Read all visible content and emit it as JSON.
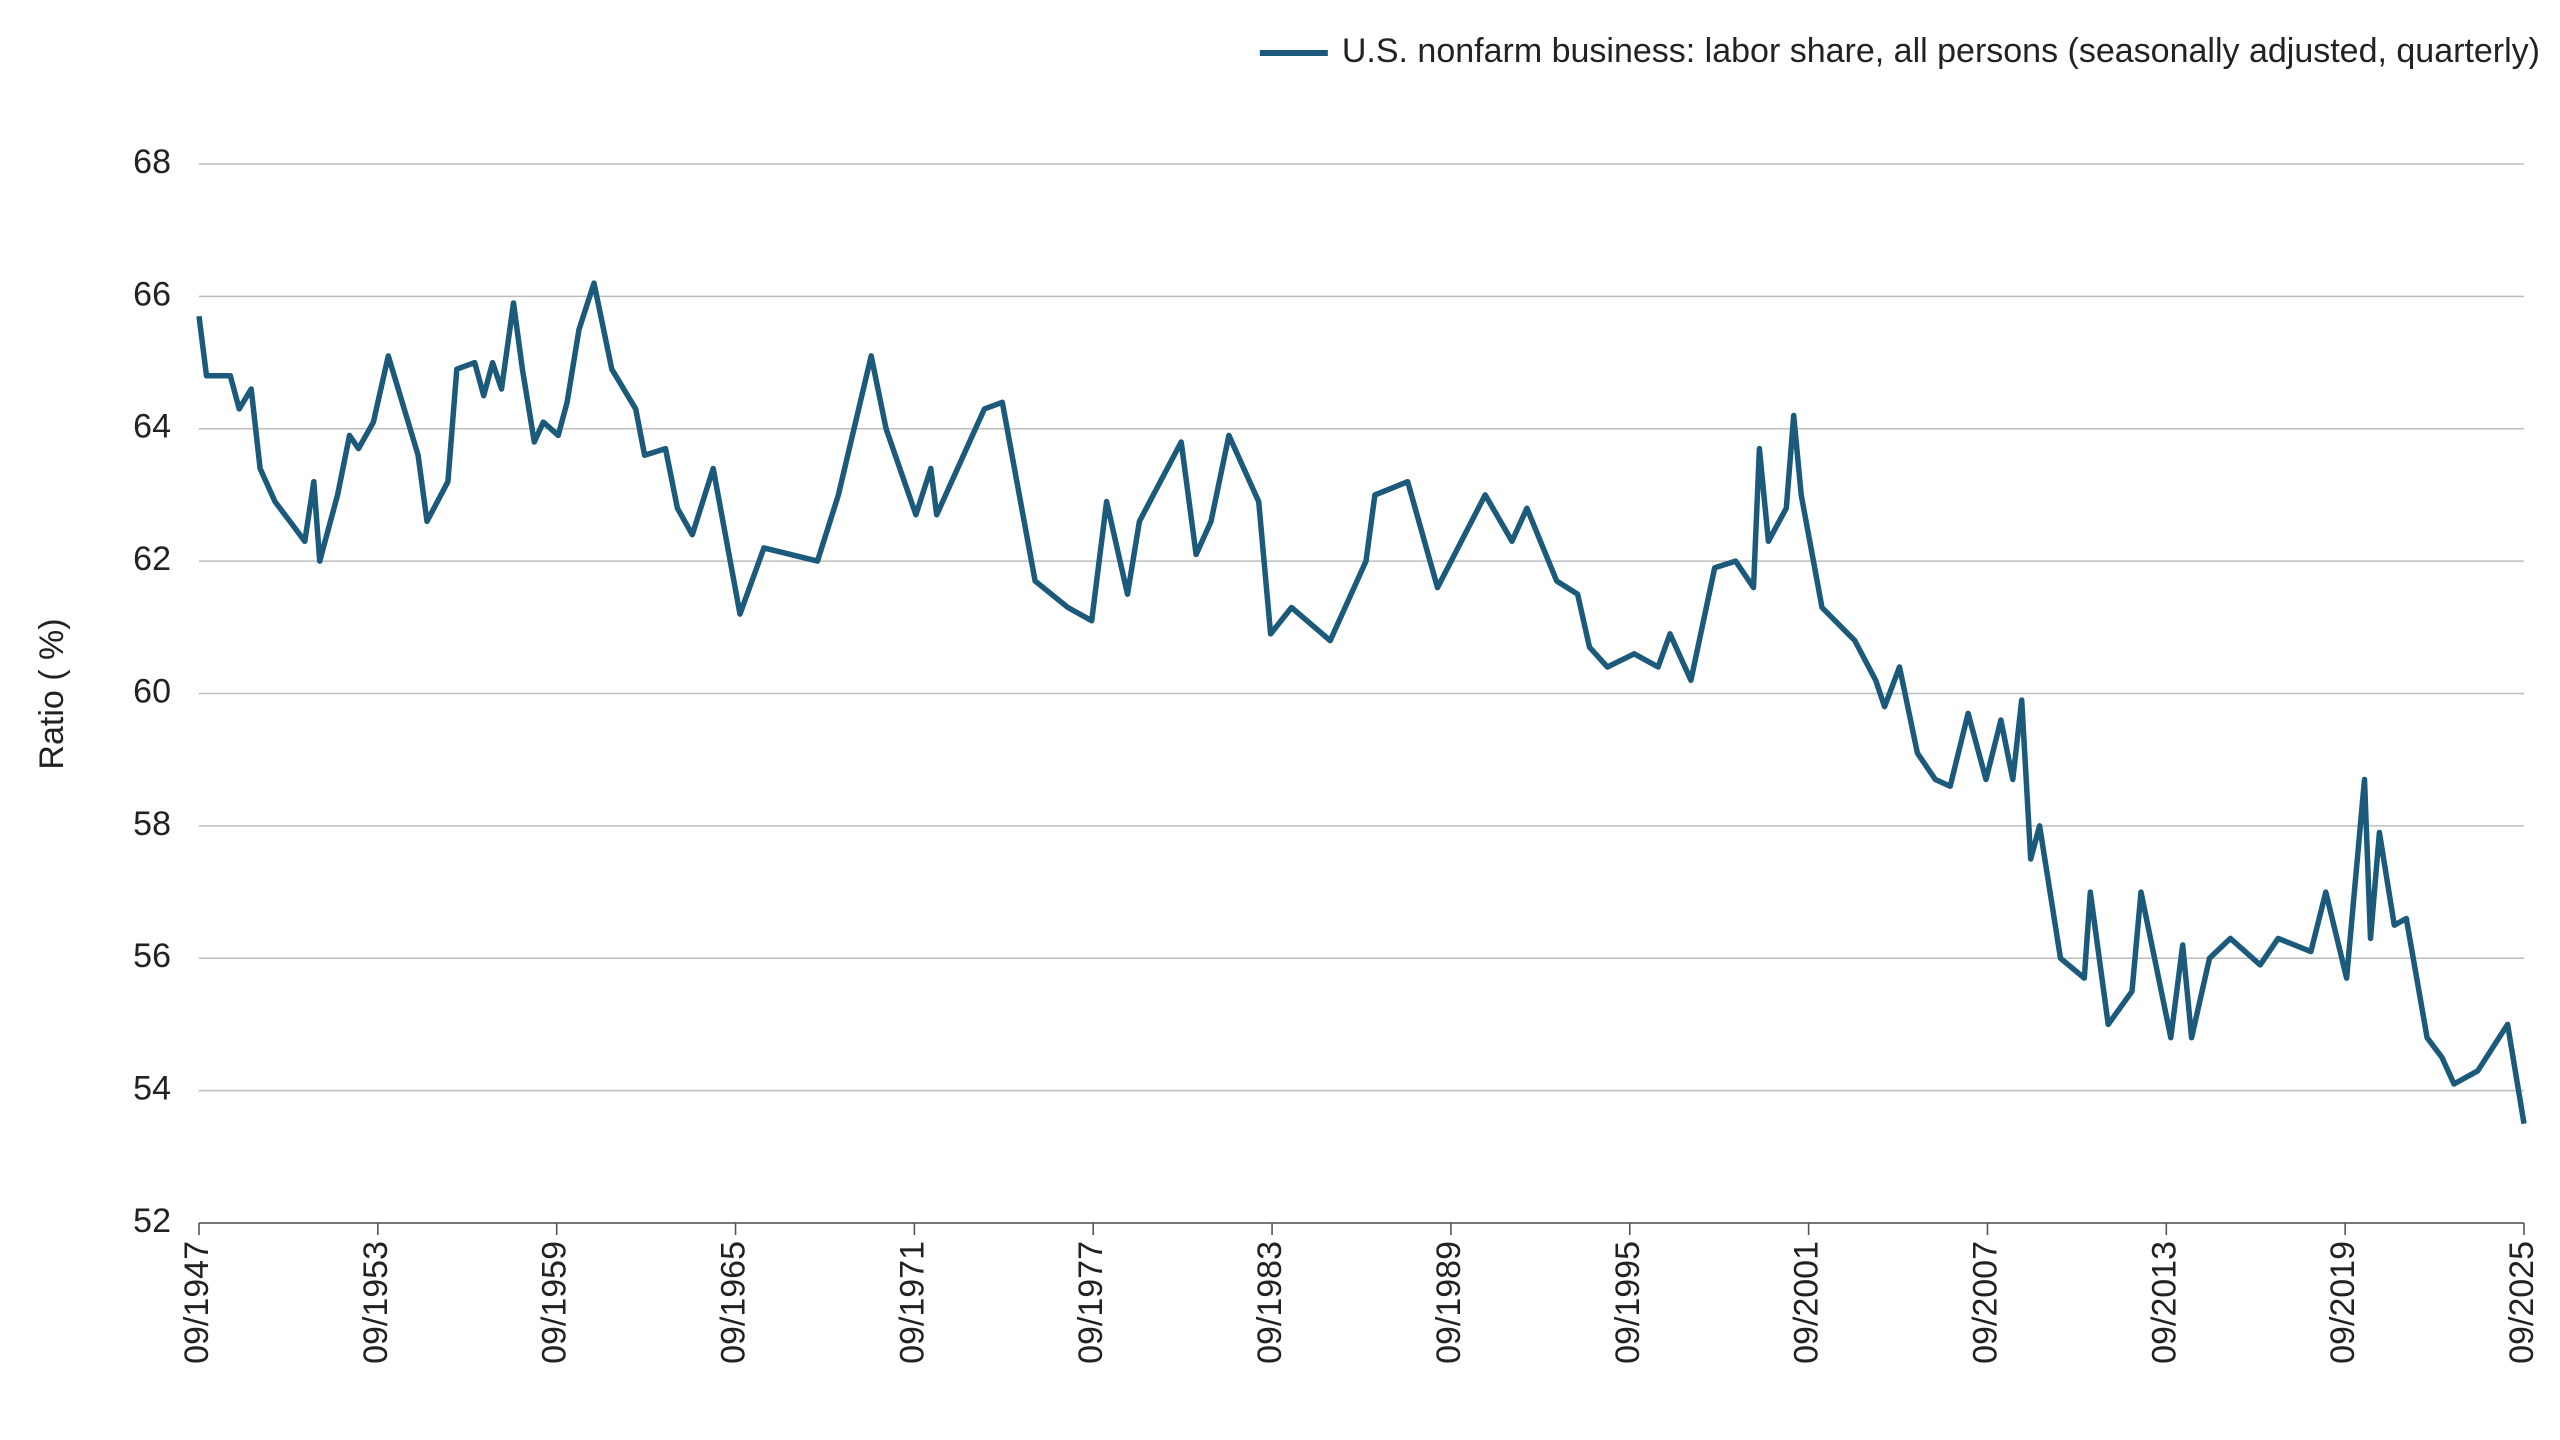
{
  "chart_data": {
    "type": "line",
    "y_label": "Ratio ( %)",
    "xlim": [
      1947.75,
      2025.75
    ],
    "xticks": [
      {
        "value": 1947.75,
        "label": "09/1947"
      },
      {
        "value": 1953.75,
        "label": "09/1953"
      },
      {
        "value": 1959.75,
        "label": "09/1959"
      },
      {
        "value": 1965.75,
        "label": "09/1965"
      },
      {
        "value": 1971.75,
        "label": "09/1971"
      },
      {
        "value": 1977.75,
        "label": "09/1977"
      },
      {
        "value": 1983.75,
        "label": "09/1983"
      },
      {
        "value": 1989.75,
        "label": "09/1989"
      },
      {
        "value": 1995.75,
        "label": "09/1995"
      },
      {
        "value": 2001.75,
        "label": "09/2001"
      },
      {
        "value": 2007.75,
        "label": "09/2007"
      },
      {
        "value": 2013.75,
        "label": "09/2013"
      },
      {
        "value": 2019.75,
        "label": "09/2019"
      },
      {
        "value": 2025.75,
        "label": "09/2025"
      }
    ],
    "ylim": [
      52,
      68
    ],
    "yticks": [
      52,
      54,
      56,
      58,
      60,
      62,
      64,
      66,
      68
    ],
    "grid": true,
    "legend": "top-right",
    "x": [
      1947.75,
      1948.0,
      1948.8,
      1949.1,
      1949.5,
      1949.8,
      1950.3,
      1950.8,
      1951.3,
      1951.6,
      1951.8,
      1952.4,
      1952.8,
      1953.1,
      1953.6,
      1954.1,
      1955.1,
      1955.4,
      1956.1,
      1956.4,
      1957.0,
      1957.3,
      1957.6,
      1957.9,
      1958.3,
      1958.6,
      1959.0,
      1959.3,
      1959.8,
      1960.1,
      1960.5,
      1961.0,
      1961.6,
      1962.4,
      1962.7,
      1963.4,
      1963.8,
      1964.3,
      1965.0,
      1965.9,
      1966.7,
      1968.5,
      1969.2,
      1970.3,
      1970.8,
      1971.8,
      1972.3,
      1972.5,
      1974.1,
      1974.7,
      1975.8,
      1976.9,
      1977.7,
      1978.2,
      1978.9,
      1979.3,
      1980.7,
      1981.2,
      1981.7,
      1982.3,
      1983.3,
      1983.7,
      1984.4,
      1985.7,
      1986.9,
      1987.2,
      1988.3,
      1989.3,
      1990.9,
      1991.8,
      1992.3,
      1993.3,
      1994.0,
      1994.4,
      1995.0,
      1995.9,
      1996.7,
      1997.1,
      1997.8,
      1998.6,
      1999.3,
      1999.9,
      2000.1,
      2000.4,
      2001.0,
      2001.25,
      2001.5,
      2002.2,
      2003.3,
      2004.0,
      2004.3,
      2004.8,
      2005.4,
      2006.0,
      2006.5,
      2007.1,
      2007.7,
      2008.2,
      2008.6,
      2008.9,
      2009.2,
      2009.5,
      2010.2,
      2011.0,
      2011.2,
      2011.8,
      2012.6,
      2012.9,
      2013.9,
      2014.3,
      2014.6,
      2015.2,
      2015.9,
      2016.9,
      2017.5,
      2018.6,
      2019.1,
      2019.8,
      2020.4,
      2020.6,
      2020.9,
      2021.4,
      2021.8,
      2022.5,
      2023.0,
      2023.4,
      2024.2,
      2025.2,
      2025.75
    ],
    "series": [
      {
        "name": "U.S. nonfarm business: labor share, all persons (seasonally adjusted, quarterly)",
        "color": "#1b5a7a",
        "values": [
          65.7,
          64.8,
          64.8,
          64.3,
          64.6,
          63.4,
          62.9,
          62.6,
          62.3,
          63.2,
          62.0,
          63.0,
          63.9,
          63.7,
          64.1,
          65.1,
          63.6,
          62.6,
          63.2,
          64.9,
          65.0,
          64.5,
          65.0,
          64.6,
          65.9,
          64.9,
          63.8,
          64.1,
          63.9,
          64.4,
          65.5,
          66.2,
          64.9,
          64.3,
          63.6,
          63.7,
          62.8,
          62.4,
          63.4,
          61.2,
          62.2,
          62.0,
          63.0,
          65.1,
          64.0,
          62.7,
          63.4,
          62.7,
          64.3,
          64.4,
          61.7,
          61.3,
          61.1,
          62.9,
          61.5,
          62.6,
          63.8,
          62.1,
          62.6,
          63.9,
          62.9,
          60.9,
          61.3,
          60.8,
          62.0,
          63.0,
          63.2,
          61.6,
          63.0,
          62.3,
          62.8,
          61.7,
          61.5,
          60.7,
          60.4,
          60.6,
          60.4,
          60.9,
          60.2,
          61.9,
          62.0,
          61.6,
          63.7,
          62.3,
          62.8,
          64.2,
          63.0,
          61.3,
          60.8,
          60.2,
          59.8,
          60.4,
          59.1,
          58.7,
          58.6,
          59.7,
          58.7,
          59.6,
          58.7,
          59.9,
          57.5,
          58.0,
          56.0,
          55.7,
          57.0,
          55.0,
          55.5,
          57.0,
          54.8,
          56.2,
          54.8,
          56.0,
          56.3,
          55.9,
          56.3,
          56.1,
          57.0,
          55.7,
          58.7,
          56.3,
          57.9,
          56.5,
          56.6,
          54.8,
          54.5,
          54.1,
          54.3,
          55.0,
          53.5
        ]
      }
    ]
  }
}
